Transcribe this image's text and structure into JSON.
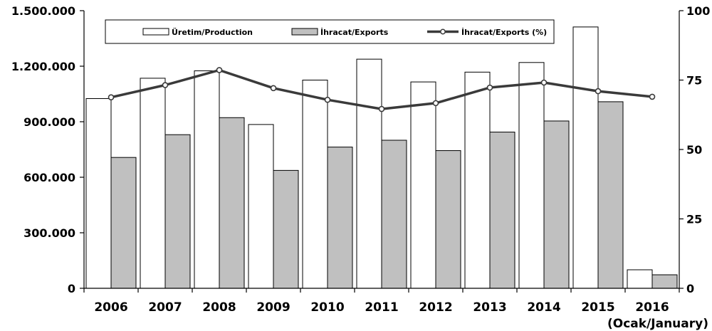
{
  "chart_data": {
    "type": "bar",
    "categories": [
      "2006",
      "2007",
      "2008",
      "2009",
      "2010",
      "2011",
      "2012",
      "2013",
      "2014",
      "2015",
      "2016"
    ],
    "category_note": "(Ocak/January)",
    "series": [
      {
        "name": "Üretim/Production",
        "type": "bar",
        "axis": "left",
        "color": "#ffffff",
        "values": [
          1025000,
          1135000,
          1175000,
          885000,
          1125000,
          1238000,
          1115000,
          1168000,
          1220000,
          1412000,
          100000
        ]
      },
      {
        "name": "İhracat/Exports",
        "type": "bar",
        "axis": "left",
        "color": "#c0c0c0",
        "values": [
          707000,
          830000,
          922000,
          637000,
          763000,
          800000,
          744000,
          844000,
          904000,
          1008000,
          73000
        ]
      },
      {
        "name": "İhracat/Exports (%)",
        "type": "line",
        "axis": "right",
        "color": "#3a3a3a",
        "values": [
          68.8,
          73.2,
          78.6,
          72.1,
          67.9,
          64.6,
          66.7,
          72.3,
          74.1,
          71.0,
          69.0
        ]
      }
    ],
    "y_left": {
      "min": 0,
      "max": 1500000,
      "tick_values": [
        0,
        300000,
        600000,
        900000,
        1200000,
        1500000
      ],
      "tick_labels": [
        "0",
        "300.000",
        "600.000",
        "900.000",
        "1.200.000",
        "1.500.000"
      ]
    },
    "y_right": {
      "min": 0,
      "max": 100,
      "tick_values": [
        0,
        25,
        50,
        75,
        100
      ],
      "tick_labels": [
        "0",
        "25",
        "50",
        "75",
        "100"
      ]
    },
    "title": "",
    "xlabel": "",
    "ylabel": "",
    "grid": false,
    "legend": "top"
  }
}
